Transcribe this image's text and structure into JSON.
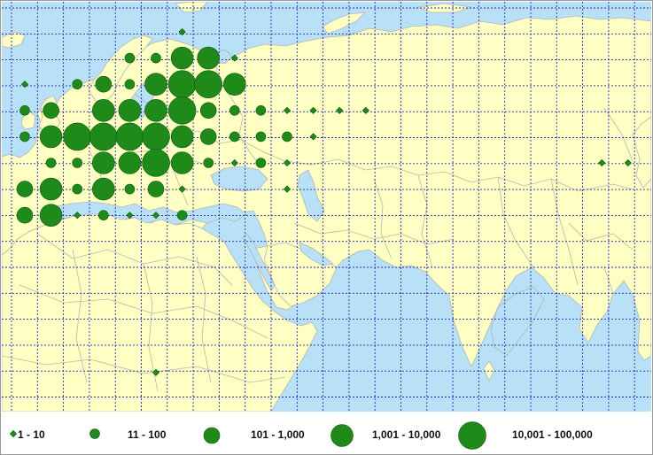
{
  "colors": {
    "water": "#b8e0f6",
    "land": "#ffffc4",
    "border": "#b5b5b5",
    "grid": "#1f2bb0",
    "dot_fill": "#1f8a1a",
    "dot_outline": "#0f5a0f"
  },
  "legend": [
    {
      "label": "1 - 10",
      "class": 1
    },
    {
      "label": "11 - 100",
      "class": 2
    },
    {
      "label": "101 - 1,000",
      "class": 3
    },
    {
      "label": "1,001 - 10,000",
      "class": 4
    },
    {
      "label": "10,001 - 100,000",
      "class": 5
    }
  ],
  "points": [
    {
      "col": 6,
      "row": 0,
      "class": 1
    },
    {
      "col": 4,
      "row": 1,
      "class": 2
    },
    {
      "col": 5,
      "row": 1,
      "class": 2
    },
    {
      "col": 6,
      "row": 1,
      "class": 4
    },
    {
      "col": 7,
      "row": 1,
      "class": 4
    },
    {
      "col": 8,
      "row": 1,
      "class": 1
    },
    {
      "col": 0,
      "row": 2,
      "class": 1
    },
    {
      "col": 2,
      "row": 2,
      "class": 2
    },
    {
      "col": 3,
      "row": 2,
      "class": 3
    },
    {
      "col": 4,
      "row": 2,
      "class": 2
    },
    {
      "col": 5,
      "row": 2,
      "class": 4
    },
    {
      "col": 6,
      "row": 2,
      "class": 5
    },
    {
      "col": 7,
      "row": 2,
      "class": 5
    },
    {
      "col": 8,
      "row": 2,
      "class": 4
    },
    {
      "col": 0,
      "row": 3,
      "class": 2
    },
    {
      "col": 1,
      "row": 3,
      "class": 3
    },
    {
      "col": 3,
      "row": 3,
      "class": 4
    },
    {
      "col": 4,
      "row": 3,
      "class": 4
    },
    {
      "col": 5,
      "row": 3,
      "class": 4
    },
    {
      "col": 6,
      "row": 3,
      "class": 5
    },
    {
      "col": 7,
      "row": 3,
      "class": 3
    },
    {
      "col": 8,
      "row": 3,
      "class": 2
    },
    {
      "col": 9,
      "row": 3,
      "class": 2
    },
    {
      "col": 10,
      "row": 3,
      "class": 1
    },
    {
      "col": 11,
      "row": 3,
      "class": 1
    },
    {
      "col": 12,
      "row": 3,
      "class": 1
    },
    {
      "col": 13,
      "row": 3,
      "class": 1
    },
    {
      "col": 0,
      "row": 4,
      "class": 2
    },
    {
      "col": 1,
      "row": 4,
      "class": 4
    },
    {
      "col": 2,
      "row": 4,
      "class": 5
    },
    {
      "col": 3,
      "row": 4,
      "class": 5
    },
    {
      "col": 4,
      "row": 4,
      "class": 5
    },
    {
      "col": 5,
      "row": 4,
      "class": 5
    },
    {
      "col": 6,
      "row": 4,
      "class": 4
    },
    {
      "col": 7,
      "row": 4,
      "class": 3
    },
    {
      "col": 8,
      "row": 4,
      "class": 2
    },
    {
      "col": 9,
      "row": 4,
      "class": 2
    },
    {
      "col": 10,
      "row": 4,
      "class": 2
    },
    {
      "col": 11,
      "row": 4,
      "class": 1
    },
    {
      "col": 1,
      "row": 5,
      "class": 2
    },
    {
      "col": 2,
      "row": 5,
      "class": 2
    },
    {
      "col": 3,
      "row": 5,
      "class": 4
    },
    {
      "col": 4,
      "row": 5,
      "class": 4
    },
    {
      "col": 5,
      "row": 5,
      "class": 5
    },
    {
      "col": 6,
      "row": 5,
      "class": 4
    },
    {
      "col": 7,
      "row": 5,
      "class": 2
    },
    {
      "col": 8,
      "row": 5,
      "class": 1
    },
    {
      "col": 9,
      "row": 5,
      "class": 2
    },
    {
      "col": 10,
      "row": 5,
      "class": 1
    },
    {
      "col": 22,
      "row": 5,
      "class": 1
    },
    {
      "col": 23,
      "row": 5,
      "class": 1
    },
    {
      "col": 0,
      "row": 6,
      "class": 3
    },
    {
      "col": 1,
      "row": 6,
      "class": 4
    },
    {
      "col": 2,
      "row": 6,
      "class": 2
    },
    {
      "col": 3,
      "row": 6,
      "class": 4
    },
    {
      "col": 4,
      "row": 6,
      "class": 2
    },
    {
      "col": 5,
      "row": 6,
      "class": 3
    },
    {
      "col": 6,
      "row": 6,
      "class": 1
    },
    {
      "col": 10,
      "row": 6,
      "class": 1
    },
    {
      "col": 0,
      "row": 7,
      "class": 3
    },
    {
      "col": 1,
      "row": 7,
      "class": 4
    },
    {
      "col": 2,
      "row": 7,
      "class": 1
    },
    {
      "col": 3,
      "row": 7,
      "class": 2
    },
    {
      "col": 4,
      "row": 7,
      "class": 1
    },
    {
      "col": 5,
      "row": 7,
      "class": 1
    },
    {
      "col": 6,
      "row": 7,
      "class": 2
    },
    {
      "col": 5,
      "row": 13,
      "class": 1
    }
  ]
}
